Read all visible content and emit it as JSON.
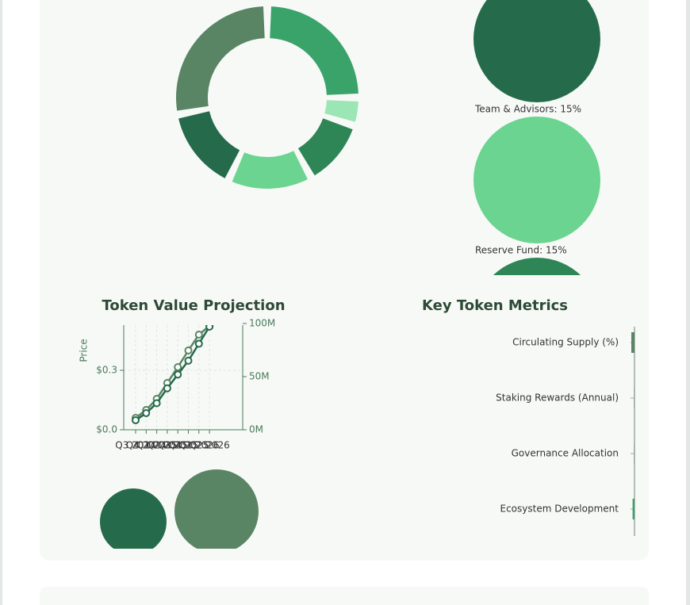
{
  "donut": {
    "type": "pie",
    "values": [
      25,
      5,
      12,
      15,
      15,
      28
    ],
    "colors": [
      "#3aa36a",
      "#9be6b4",
      "#2e8555",
      "#6bd490",
      "#256b4b",
      "#5a8564"
    ]
  },
  "legend": [
    {
      "label": "Team & Advisors: 15%",
      "color": "#256b4b"
    },
    {
      "label": "Reserve Fund: 15%",
      "color": "#6bd490"
    },
    {
      "label": "",
      "color": "#2e8555"
    }
  ],
  "chart_data": {
    "type": "line",
    "title": "Token Value Projection",
    "y_label": "Price",
    "categories": [
      "Q3 2024",
      "Q4 2024",
      "Q1 2025",
      "Q2 2025",
      "Q3 2025",
      "Q4 2025",
      "Q1 2026",
      "Q2 2026"
    ],
    "series": [
      {
        "color": "#5a8564",
        "values": [
          0.06,
          0.1,
          0.156,
          0.236,
          0.316,
          0.4,
          0.48,
          0.524
        ]
      },
      {
        "color": "#256b4b",
        "axis": "y2",
        "values": [
          9,
          15.7,
          25,
          39,
          52,
          65,
          81,
          97
        ]
      }
    ],
    "ylim": [
      0,
      0.536
    ],
    "yticks": [
      {
        "value": 0,
        "label": "$0.0"
      },
      {
        "value": 0.3,
        "label": "$0.3"
      }
    ],
    "y2lim": [
      0,
      100
    ],
    "y2ticks": [
      {
        "value": 0,
        "label": "0M"
      },
      {
        "value": 50,
        "label": "50M"
      },
      {
        "value": 100,
        "label": "100M"
      }
    ],
    "grid": true
  },
  "metrics": {
    "type": "bar",
    "title": "Key Token Metrics",
    "categories": [
      "Circulating Supply (%)",
      "Staking Rewards (Annual)",
      "Governance Allocation",
      "Ecosystem Development"
    ],
    "values": [
      10,
      2,
      2,
      6
    ],
    "colors": [
      "#5a8564",
      "#9aa9a0",
      "#9aa9a0",
      "#3aa36a"
    ],
    "xlim": [
      0,
      100
    ]
  }
}
